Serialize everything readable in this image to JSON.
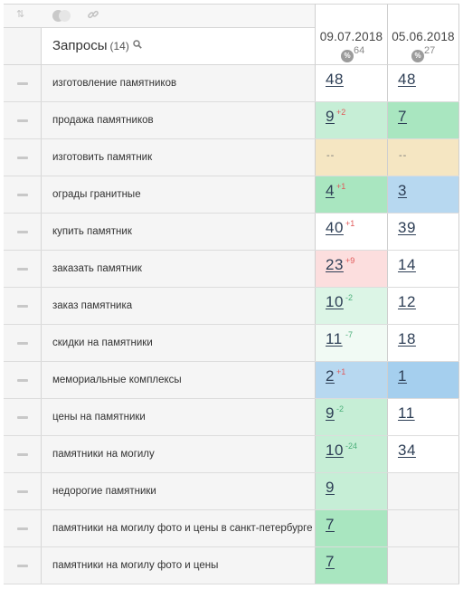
{
  "toolbar": {
    "icons": [
      "sort-icon",
      "toggle-icon",
      "link-icon"
    ],
    "sort_glyph": "⇅",
    "link_glyph": "🔗"
  },
  "header": {
    "title": "Запросы",
    "count": "(14)",
    "search_glyph": "🔍"
  },
  "columns": [
    {
      "date": "09.07.2018",
      "pct_label": "%",
      "pct_value": "64"
    },
    {
      "date": "05.06.2018",
      "pct_label": "%",
      "pct_value": "27"
    }
  ],
  "colors": {
    "white": "#ffffff",
    "lightgreen": "#c6eed6",
    "green": "#a9e6c0",
    "greenpale": "#dcf5e6",
    "verypale": "#f1faf4",
    "yellow": "#f5e6c2",
    "blue": "#b7d8f0",
    "blue2": "#a5cfee",
    "red": "#fcdede",
    "empty": "#f5f5f5",
    "delta_up": "#e05858",
    "delta_down": "#4caf7a"
  },
  "rows": [
    {
      "query": "изготовление памятников",
      "c1": {
        "value": "48",
        "delta": "",
        "dir": "",
        "bg": "white"
      },
      "c2": {
        "value": "48",
        "bg": "white"
      }
    },
    {
      "query": "продажа памятников",
      "c1": {
        "value": "9",
        "delta": "+2",
        "dir": "up",
        "bg": "lightgreen"
      },
      "c2": {
        "value": "7",
        "bg": "green"
      }
    },
    {
      "query": "изготовить памятник",
      "c1": {
        "value": "--",
        "delta": "",
        "dir": "",
        "bg": "yellow"
      },
      "c2": {
        "value": "--",
        "bg": "yellow"
      }
    },
    {
      "query": "ограды гранитные",
      "c1": {
        "value": "4",
        "delta": "+1",
        "dir": "up",
        "bg": "green"
      },
      "c2": {
        "value": "3",
        "bg": "blue"
      }
    },
    {
      "query": "купить памятник",
      "c1": {
        "value": "40",
        "delta": "+1",
        "dir": "up",
        "bg": "white"
      },
      "c2": {
        "value": "39",
        "bg": "white"
      }
    },
    {
      "query": "заказать памятник",
      "c1": {
        "value": "23",
        "delta": "+9",
        "dir": "up",
        "bg": "red"
      },
      "c2": {
        "value": "14",
        "bg": "white"
      }
    },
    {
      "query": "заказ памятника",
      "c1": {
        "value": "10",
        "delta": "-2",
        "dir": "down",
        "bg": "greenpale"
      },
      "c2": {
        "value": "12",
        "bg": "white"
      }
    },
    {
      "query": "скидки на памятники",
      "c1": {
        "value": "11",
        "delta": "-7",
        "dir": "down",
        "bg": "verypale"
      },
      "c2": {
        "value": "18",
        "bg": "white"
      }
    },
    {
      "query": "мемориальные комплексы",
      "c1": {
        "value": "2",
        "delta": "+1",
        "dir": "up",
        "bg": "blue"
      },
      "c2": {
        "value": "1",
        "bg": "blue2"
      }
    },
    {
      "query": "цены на памятники",
      "c1": {
        "value": "9",
        "delta": "-2",
        "dir": "down",
        "bg": "lightgreen"
      },
      "c2": {
        "value": "11",
        "bg": "white"
      }
    },
    {
      "query": "памятники на могилу",
      "c1": {
        "value": "10",
        "delta": "-24",
        "dir": "down",
        "bg": "lightgreen"
      },
      "c2": {
        "value": "34",
        "bg": "white"
      }
    },
    {
      "query": "недорогие памятники",
      "c1": {
        "value": "9",
        "delta": "",
        "dir": "",
        "bg": "lightgreen"
      },
      "c2": {
        "value": "",
        "bg": "empty"
      }
    },
    {
      "query": "памятники на могилу фото и цены в санкт-петербурге",
      "c1": {
        "value": "7",
        "delta": "",
        "dir": "",
        "bg": "green"
      },
      "c2": {
        "value": "",
        "bg": "empty"
      }
    },
    {
      "query": "памятники на могилу фото и цены",
      "c1": {
        "value": "7",
        "delta": "",
        "dir": "",
        "bg": "green"
      },
      "c2": {
        "value": "",
        "bg": "empty"
      }
    }
  ]
}
